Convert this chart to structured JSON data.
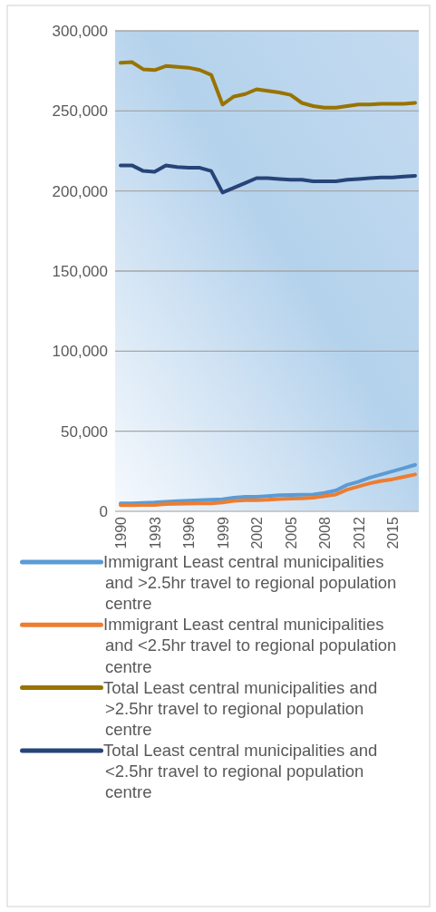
{
  "chart_data": {
    "type": "line",
    "categories": [
      "1990",
      null,
      null,
      "1993",
      null,
      null,
      "1996",
      null,
      null,
      "1999",
      null,
      null,
      "2002",
      null,
      null,
      "2005",
      null,
      null,
      "2008",
      null,
      null,
      "2012",
      null,
      null,
      "2015",
      null,
      null
    ],
    "ylim": [
      0,
      300000
    ],
    "yticks": [
      {
        "value": 0,
        "label": "0"
      },
      {
        "value": 50000,
        "label": "50,000"
      },
      {
        "value": 100000,
        "label": "100,000"
      },
      {
        "value": 150000,
        "label": "150,000"
      },
      {
        "value": 200000,
        "label": "200,000"
      },
      {
        "value": 250000,
        "label": "250,000"
      },
      {
        "value": 300000,
        "label": "300,000"
      }
    ],
    "grid": "y",
    "legend": "bottom",
    "marker": "none",
    "line_style": "solid",
    "series": [
      {
        "name": "Immigrant Least central municipalities and >2.5hr travel to regional population centre",
        "color": "#5b9bd5",
        "values": [
          5000,
          5000,
          5200,
          5500,
          6000,
          6300,
          6600,
          7000,
          7200,
          7500,
          8500,
          9000,
          9000,
          9500,
          10000,
          10200,
          10300,
          10500,
          11500,
          13000,
          16500,
          18500,
          21000,
          23000,
          25000,
          27000,
          29000
        ]
      },
      {
        "name": "Immigrant Least central municipalities and <2.5hr travel to regional population centre",
        "color": "#ed7d31",
        "values": [
          3800,
          3800,
          3900,
          4000,
          4500,
          4700,
          4800,
          5000,
          5000,
          5500,
          6500,
          7000,
          7000,
          7200,
          7700,
          7900,
          8000,
          8500,
          9500,
          10500,
          13500,
          15500,
          17500,
          19000,
          20000,
          21500,
          23000
        ]
      },
      {
        "name": "Total Least central municipalities and >2.5hr travel to regional population centre",
        "color": "#997300",
        "values": [
          280000,
          280500,
          276000,
          275500,
          278000,
          277500,
          277000,
          275500,
          272500,
          254000,
          259000,
          260500,
          263500,
          262500,
          261500,
          260000,
          255000,
          253000,
          252000,
          252000,
          253000,
          254000,
          254000,
          254500,
          254500,
          254500,
          255000
        ]
      },
      {
        "name": "Total Least central municipalities and <2.5hr travel to regional population centre",
        "color": "#264478",
        "values": [
          216000,
          216000,
          212500,
          212000,
          216000,
          215000,
          214500,
          214500,
          212500,
          199000,
          202000,
          205000,
          208000,
          208000,
          207500,
          207000,
          207000,
          206000,
          206000,
          206000,
          207000,
          207500,
          208000,
          208500,
          208500,
          209000,
          209500
        ]
      }
    ]
  }
}
